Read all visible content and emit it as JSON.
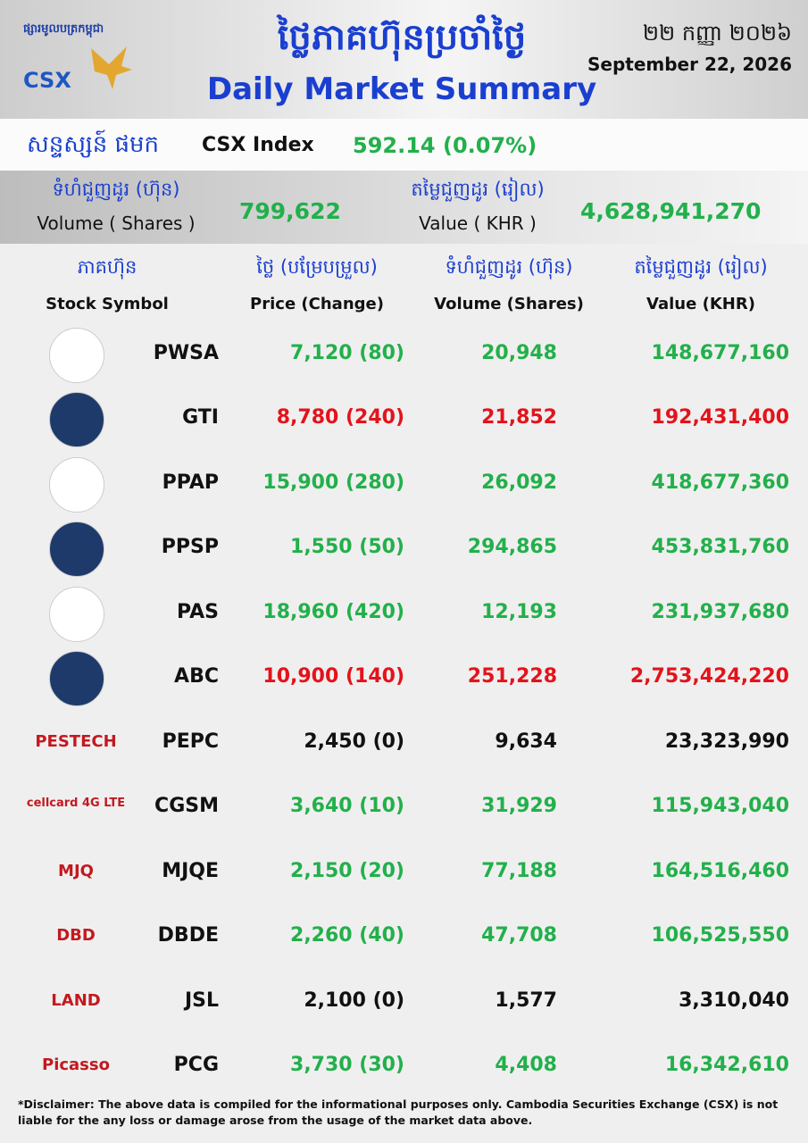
{
  "header": {
    "logo_khmer": "ផ្សារមូលបត្រកម្ពុជា",
    "logo": "CSX",
    "title_khmer": "ថ្លៃភាគហ៊ុនប្រចាំថ្ងៃ",
    "title": "Daily Market Summary",
    "date_khmer": "២២ កញ្ញា ២០២៦",
    "date": "September 22, 2026"
  },
  "index": {
    "label_khmer": "សន្ទស្សន៍ ផមក",
    "label": "CSX Index",
    "value": "592.14 (0.07%)"
  },
  "totals": {
    "volume_khmer": "ទំហំជួញដូរ (ហ៊ុន)",
    "volume_label": "Volume ( Shares )",
    "volume": "799,622",
    "value_khmer": "តម្លៃជួញដូរ (រៀល)",
    "value_label": "Value ( KHR )",
    "value": "4,628,941,270"
  },
  "table": {
    "columns": [
      {
        "khmer": "ភាគហ៊ុន",
        "label": "Stock Symbol"
      },
      {
        "khmer": "ថ្លៃ (បម្រែបម្រួល)",
        "label": "Price (Change)"
      },
      {
        "khmer": "ទំហំជួញដូរ (ហ៊ុន)",
        "label": "Volume (Shares)"
      },
      {
        "khmer": "តម្លៃជួញដូរ (រៀល)",
        "label": "Value (KHR)"
      }
    ],
    "rows": [
      {
        "symbol": "PWSA",
        "price": "7,120 (80)",
        "volume": "20,948",
        "value": "148,677,160",
        "color": "#22b04b"
      },
      {
        "symbol": "GTI",
        "price": "8,780 (240)",
        "volume": "21,852",
        "value": "192,431,400",
        "color": "#e3131b"
      },
      {
        "symbol": "PPAP",
        "price": "15,900 (280)",
        "volume": "26,092",
        "value": "418,677,360",
        "color": "#22b04b"
      },
      {
        "symbol": "PPSP",
        "price": "1,550 (50)",
        "volume": "294,865",
        "value": "453,831,760",
        "color": "#22b04b"
      },
      {
        "symbol": "PAS",
        "price": "18,960 (420)",
        "volume": "12,193",
        "value": "231,937,680",
        "color": "#22b04b"
      },
      {
        "symbol": "ABC",
        "price": "10,900 (140)",
        "volume": "251,228",
        "value": "2,753,424,220",
        "color": "#e3131b"
      },
      {
        "symbol": "PEPC",
        "price": "2,450 (0)",
        "volume": "9,634",
        "value": "23,323,990",
        "color": "#111111",
        "logo": "PESTECH"
      },
      {
        "symbol": "CGSM",
        "price": "3,640 (10)",
        "volume": "31,929",
        "value": "115,943,040",
        "color": "#22b04b",
        "logo": "cellcard 4G LTE"
      },
      {
        "symbol": "MJQE",
        "price": "2,150 (20)",
        "volume": "77,188",
        "value": "164,516,460",
        "color": "#22b04b",
        "logo": "MJQ"
      },
      {
        "symbol": "DBDE",
        "price": "2,260 (40)",
        "volume": "47,708",
        "value": "106,525,550",
        "color": "#22b04b",
        "logo": "DBD"
      },
      {
        "symbol": "JSL",
        "price": "2,100 (0)",
        "volume": "1,577",
        "value": "3,310,040",
        "color": "#111111",
        "logo": "LAND"
      },
      {
        "symbol": "PCG",
        "price": "3,730 (30)",
        "volume": "4,408",
        "value": "16,342,610",
        "color": "#22b04b",
        "logo": "Picasso"
      }
    ]
  },
  "disclaimer": "*Disclaimer: The above data is compiled for the informational purposes only. Cambodia Securities Exchange (CSX) is not liable for the any loss or damage arose from the usage of the market data above."
}
